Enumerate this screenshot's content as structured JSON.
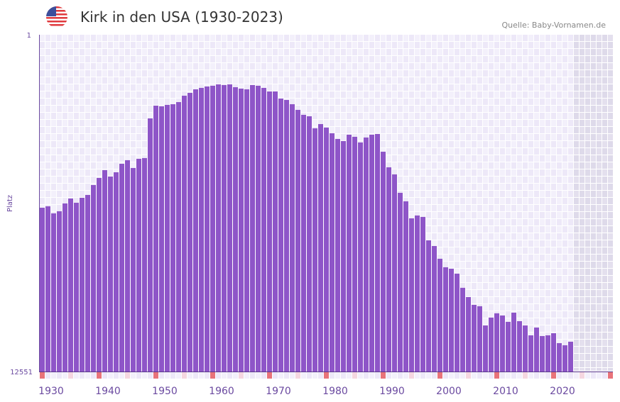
{
  "header": {
    "title": "Kirk in den USA (1930-2023)",
    "source": "Quelle: Baby-Vornamen.de",
    "flag_icon": "us-flag-icon"
  },
  "colors": {
    "bar": "#8e55c8",
    "grid_a": "#f3f0fb",
    "grid_b": "#ede8f8",
    "future": "#e4e0ee",
    "decade_marker": "#e8737a",
    "half_decade_marker": "#f5d6e0",
    "axis": "#6b4aa0"
  },
  "chart_data": {
    "type": "bar",
    "title": "Kirk in den USA (1930-2023)",
    "xlabel": "",
    "ylabel": "Platz",
    "y_reversed": true,
    "ylim": [
      1,
      12551
    ],
    "y_tick_labels": [
      "1",
      "12551"
    ],
    "x_range": [
      1930,
      2030
    ],
    "x_tick_labels": [
      "1930",
      "1940",
      "1950",
      "1960",
      "1970",
      "1980",
      "1990",
      "2000",
      "2010",
      "2020"
    ],
    "grid": true,
    "years": [
      1930,
      1931,
      1932,
      1933,
      1934,
      1935,
      1936,
      1937,
      1938,
      1939,
      1940,
      1941,
      1942,
      1943,
      1944,
      1945,
      1946,
      1947,
      1948,
      1949,
      1950,
      1951,
      1952,
      1953,
      1954,
      1955,
      1956,
      1957,
      1958,
      1959,
      1960,
      1961,
      1962,
      1963,
      1964,
      1965,
      1966,
      1967,
      1968,
      1969,
      1970,
      1971,
      1972,
      1973,
      1974,
      1975,
      1976,
      1977,
      1978,
      1979,
      1980,
      1981,
      1982,
      1983,
      1984,
      1985,
      1986,
      1987,
      1988,
      1989,
      1990,
      1991,
      1992,
      1993,
      1994,
      1995,
      1996,
      1997,
      1998,
      1999,
      2000,
      2001,
      2002,
      2003,
      2004,
      2005,
      2006,
      2007,
      2008,
      2009,
      2010,
      2011,
      2012,
      2013,
      2014,
      2015,
      2016,
      2017,
      2018,
      2019,
      2020,
      2021,
      2022,
      2023
    ],
    "ranks": [
      6447,
      6394,
      6658,
      6579,
      6288,
      6103,
      6262,
      6077,
      5971,
      5601,
      5337,
      5046,
      5284,
      5126,
      4809,
      4676,
      4967,
      4624,
      4597,
      3118,
      2643,
      2669,
      2616,
      2590,
      2511,
      2273,
      2167,
      2035,
      1982,
      1929,
      1903,
      1850,
      1876,
      1850,
      1956,
      2009,
      2035,
      1876,
      1903,
      1982,
      2114,
      2114,
      2378,
      2431,
      2590,
      2801,
      2986,
      3039,
      3488,
      3330,
      3461,
      3673,
      3884,
      3963,
      3725,
      3805,
      4016,
      3831,
      3725,
      3699,
      4360,
      4941,
      5205,
      5892,
      6209,
      6843,
      6737,
      6790,
      7662,
      7874,
      8349,
      8666,
      8719,
      8904,
      9432,
      9776,
      10066,
      10119,
      10833,
      10542,
      10383,
      10463,
      10700,
      10357,
      10674,
      10833,
      11203,
      10912,
      11229,
      11203,
      11124,
      11493,
      11573,
      11440
    ]
  }
}
